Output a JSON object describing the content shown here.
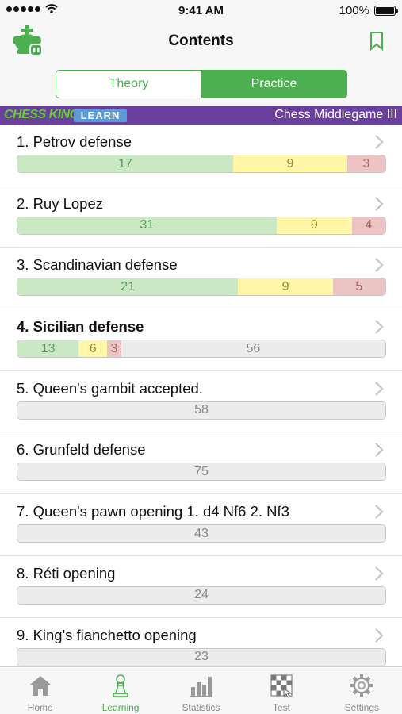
{
  "status": {
    "time": "9:41 AM",
    "battery": "100%"
  },
  "nav": {
    "title": "Contents"
  },
  "segment": {
    "left": "Theory",
    "right": "Practice",
    "selected": "Practice"
  },
  "banner": {
    "brand": "CHESS KING",
    "badge": "LEARN",
    "course": "Chess Middlegame III"
  },
  "items": [
    {
      "title": "1. Petrov defense",
      "bold": false,
      "bar": [
        {
          "type": "green",
          "value": 17
        },
        {
          "type": "yellow",
          "value": 9
        },
        {
          "type": "red",
          "value": 3
        }
      ]
    },
    {
      "title": "2. Ruy Lopez",
      "bold": false,
      "bar": [
        {
          "type": "green",
          "value": 31
        },
        {
          "type": "yellow",
          "value": 9
        },
        {
          "type": "red",
          "value": 4
        }
      ]
    },
    {
      "title": "3. Scandinavian defense",
      "bold": false,
      "bar": [
        {
          "type": "green",
          "value": 21
        },
        {
          "type": "yellow",
          "value": 9
        },
        {
          "type": "red",
          "value": 5
        }
      ]
    },
    {
      "title": "4. Sicilian defense",
      "bold": true,
      "bar": [
        {
          "type": "green",
          "value": 13
        },
        {
          "type": "yellow",
          "value": 6
        },
        {
          "type": "red",
          "value": 3
        },
        {
          "type": "gray",
          "value": 56
        }
      ]
    },
    {
      "title": "5. Queen's gambit accepted.",
      "bold": false,
      "bar": [
        {
          "type": "gray",
          "value": 58
        }
      ]
    },
    {
      "title": "6. Grunfeld defense",
      "bold": false,
      "bar": [
        {
          "type": "gray",
          "value": 75
        }
      ]
    },
    {
      "title": "7. Queen's pawn opening 1. d4 Nf6 2. Nf3",
      "bold": false,
      "bar": [
        {
          "type": "gray",
          "value": 43
        }
      ]
    },
    {
      "title": "8. Réti opening",
      "bold": false,
      "bar": [
        {
          "type": "gray",
          "value": 24
        }
      ]
    },
    {
      "title": "9. King's fianchetto opening",
      "bold": false,
      "bar": [
        {
          "type": "gray",
          "value": 23
        }
      ]
    }
  ],
  "tabs": [
    {
      "label": "Home",
      "icon": "home-icon",
      "active": false
    },
    {
      "label": "Learning",
      "icon": "pawn-icon",
      "active": true
    },
    {
      "label": "Statistics",
      "icon": "bar-chart-icon",
      "active": false
    },
    {
      "label": "Test",
      "icon": "chessboard-icon",
      "active": false
    },
    {
      "label": "Settings",
      "icon": "gear-icon",
      "active": false
    }
  ],
  "colors": {
    "accent": "#4caf50",
    "banner": "#6b3f9e",
    "brand": "#5fd02e",
    "badge": "#5b9bd8"
  }
}
